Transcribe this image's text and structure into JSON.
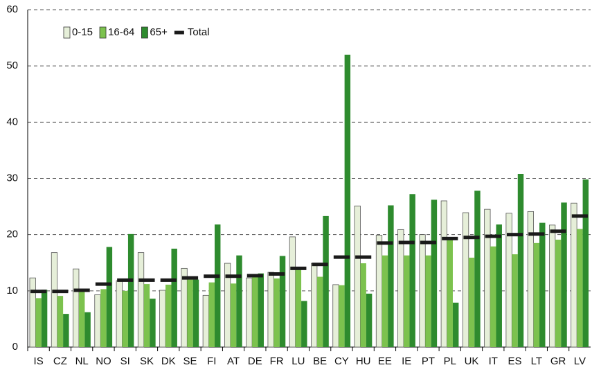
{
  "chart_data": {
    "type": "bar",
    "categories": [
      "IS",
      "CZ",
      "NL",
      "NO",
      "SI",
      "SK",
      "DK",
      "SE",
      "FI",
      "AT",
      "DE",
      "FR",
      "LU",
      "BE",
      "CY",
      "HU",
      "EE",
      "IE",
      "PT",
      "PL",
      "UK",
      "IT",
      "ES",
      "LT",
      "GR",
      "LV"
    ],
    "series": [
      {
        "name": "0-15",
        "color": "#e6efd9",
        "values": [
          12.3,
          16.8,
          13.9,
          9.3,
          11.8,
          16.8,
          10.1,
          14.0,
          9.2,
          14.9,
          12.3,
          13.3,
          19.6,
          14.9,
          11.1,
          25.1,
          19.9,
          20.9,
          20.0,
          26.0,
          23.9,
          24.5,
          23.8,
          24.1,
          21.7,
          25.6
        ]
      },
      {
        "name": "16-64",
        "color": "#7cc24e",
        "values": [
          8.7,
          9.1,
          9.8,
          10.3,
          10.0,
          11.2,
          11.1,
          12.0,
          11.5,
          11.3,
          12.5,
          12.2,
          14.0,
          12.5,
          11.0,
          14.9,
          16.3,
          16.3,
          16.3,
          19.3,
          15.9,
          17.9,
          16.5,
          18.5,
          19.1,
          21.0
        ]
      },
      {
        "name": "65+",
        "color": "#2e8b2e",
        "values": [
          10.2,
          5.9,
          6.2,
          17.8,
          20.1,
          8.6,
          17.5,
          12.0,
          21.8,
          16.3,
          13.1,
          16.2,
          8.2,
          23.3,
          52.0,
          9.5,
          25.2,
          27.2,
          26.2,
          7.9,
          27.8,
          21.8,
          30.8,
          22.1,
          25.7,
          29.8
        ]
      },
      {
        "name": "Total",
        "color": "#1a1a1a",
        "marker": "dash",
        "values": [
          9.9,
          9.9,
          10.1,
          11.2,
          11.9,
          11.9,
          11.9,
          12.3,
          12.6,
          12.6,
          12.7,
          13.0,
          14.0,
          14.7,
          16.0,
          16.0,
          18.5,
          18.6,
          18.6,
          19.3,
          19.5,
          19.7,
          20.0,
          20.1,
          20.6,
          23.3
        ]
      }
    ],
    "ylim": [
      0,
      60
    ],
    "yticks": [
      0,
      10,
      20,
      30,
      40,
      50,
      60
    ],
    "grid": true,
    "legend": "upper-left"
  }
}
